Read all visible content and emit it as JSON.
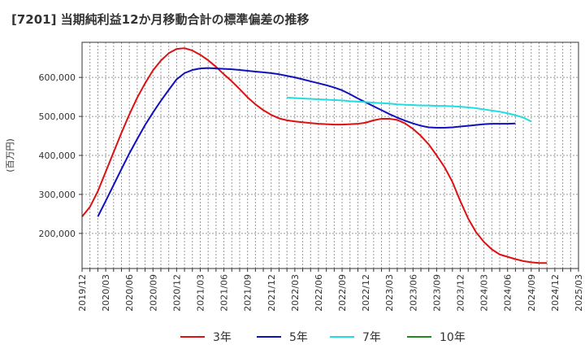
{
  "title": "[7201]  当期純利益12か月移動合計の標準偏差の推移",
  "chart_data": {
    "type": "line",
    "title": "[7201]  当期純利益12か月移動合計の標準偏差の推移",
    "xlabel": "",
    "ylabel": "(百万円)",
    "ylim": [
      110000,
      690000
    ],
    "yticks": [
      200000,
      300000,
      400000,
      500000,
      600000
    ],
    "ytick_labels": [
      "200,000",
      "300,000",
      "400,000",
      "500,000",
      "600,000"
    ],
    "xlim": [
      "2019-12",
      "2025-03"
    ],
    "x_start_index": 0,
    "x_end_index": 63,
    "xtick_labels": [
      "2019/12",
      "2020/03",
      "2020/06",
      "2020/09",
      "2020/12",
      "2021/03",
      "2021/06",
      "2021/09",
      "2021/12",
      "2022/03",
      "2022/06",
      "2022/09",
      "2022/12",
      "2023/03",
      "2023/06",
      "2023/09",
      "2023/12",
      "2024/03",
      "2024/06",
      "2024/09",
      "2024/12",
      "2025/03"
    ],
    "grid": true,
    "legend_position": "bottom",
    "series": [
      {
        "name": "3年",
        "color": "#dd1111",
        "x_start_index": 0,
        "values": [
          243000,
          268000,
          308000,
          358000,
          408000,
          458000,
          505000,
          548000,
          585000,
          618000,
          643000,
          662000,
          673000,
          675000,
          669000,
          658000,
          644000,
          627000,
          608000,
          590000,
          570000,
          549000,
          531000,
          516000,
          504000,
          495000,
          490000,
          487000,
          485000,
          483000,
          481000,
          480000,
          479000,
          479000,
          480000,
          481000,
          484000,
          490000,
          494000,
          494000,
          491000,
          482000,
          468000,
          450000,
          428000,
          400000,
          370000,
          332000,
          283000,
          238000,
          203000,
          178000,
          159000,
          146000,
          140000,
          134000,
          129000,
          126000,
          124000,
          124000
        ]
      },
      {
        "name": "5年",
        "color": "#1111bb",
        "x_start_index": 2,
        "values": [
          243000,
          283000,
          324000,
          365000,
          405000,
          442000,
          478000,
          510000,
          540000,
          568000,
          595000,
          611000,
          619000,
          623000,
          624000,
          623000,
          622000,
          621000,
          619000,
          617000,
          615000,
          613000,
          611000,
          608000,
          604000,
          600000,
          595000,
          590000,
          585000,
          580000,
          574000,
          567000,
          557000,
          546000,
          536000,
          526000,
          516000,
          506000,
          497000,
          489000,
          482000,
          476000,
          472000,
          471000,
          471000,
          472000,
          474000,
          476000,
          478000,
          480000,
          481000,
          481000,
          481000,
          482000
        ]
      },
      {
        "name": "7年",
        "color": "#22dddd",
        "x_start_index": 26,
        "values": [
          548000,
          547000,
          546000,
          545000,
          544000,
          543000,
          542000,
          541000,
          539000,
          538000,
          537000,
          535000,
          534000,
          533000,
          531000,
          530000,
          529000,
          528000,
          528000,
          527000,
          527000,
          526000,
          525000,
          523000,
          521000,
          518000,
          515000,
          512000,
          508000,
          503000,
          497000,
          487000
        ]
      },
      {
        "name": "10年",
        "color": "#228822",
        "x_start_index": 0,
        "values": []
      }
    ]
  }
}
